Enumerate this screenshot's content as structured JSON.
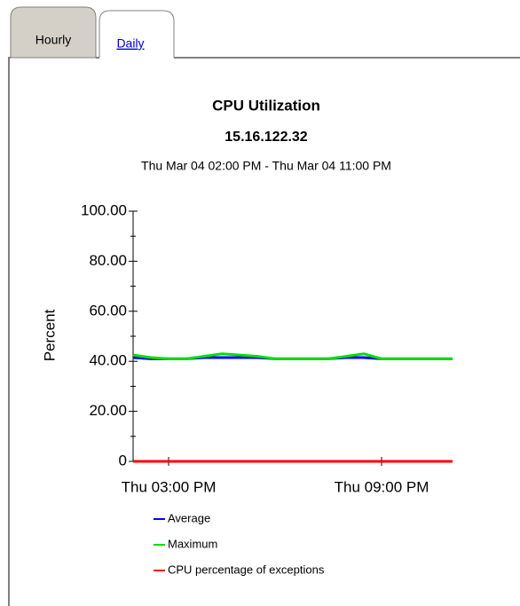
{
  "tabs": [
    "Hourly",
    "Daily"
  ],
  "chart_data": {
    "type": "line",
    "title": "CPU Utilization",
    "subtitle": "15.16.122.32",
    "time_range": "Thu Mar 04 02:00 PM - Thu Mar 04 11:00 PM",
    "y_label": "Percent",
    "x": [
      14,
      14.5,
      15,
      15.5,
      16,
      16.5,
      17,
      17.5,
      18,
      18.5,
      19,
      19.5,
      20,
      20.5,
      21,
      21.5,
      22,
      22.5,
      23
    ],
    "xlim": [
      14,
      23
    ],
    "xticks": [
      {
        "value": 15,
        "label": "Thu 03:00 PM"
      },
      {
        "value": 21,
        "label": "Thu 09:00 PM"
      }
    ],
    "ylim": [
      0,
      100
    ],
    "yticks": [
      0,
      {
        "value": 20,
        "label": "20.00"
      },
      {
        "value": 40,
        "label": "40.00"
      },
      {
        "value": 60,
        "label": "60.00"
      },
      {
        "value": 80,
        "label": "80.00"
      },
      {
        "value": 100,
        "label": "100.00"
      }
    ],
    "series": [
      {
        "name": "Average",
        "color": "#0000ff",
        "values": [
          41.5,
          41,
          41,
          41,
          41.5,
          41.5,
          41.5,
          41.5,
          41,
          41,
          41,
          41,
          41.5,
          41.5,
          41,
          41,
          41,
          41,
          41
        ]
      },
      {
        "name": "Maximum",
        "color": "#00e000",
        "values": [
          42.5,
          41.5,
          41,
          41,
          42,
          43,
          42.5,
          42,
          41,
          41,
          41,
          41,
          42,
          43,
          41,
          41,
          41,
          41,
          41
        ]
      },
      {
        "name": "CPU percentage of exceptions",
        "color": "#ff0000",
        "values": [
          0,
          0,
          0,
          0,
          0,
          0,
          0,
          0,
          0,
          0,
          0,
          0,
          0,
          0,
          0,
          0,
          0,
          0,
          0
        ]
      }
    ]
  }
}
